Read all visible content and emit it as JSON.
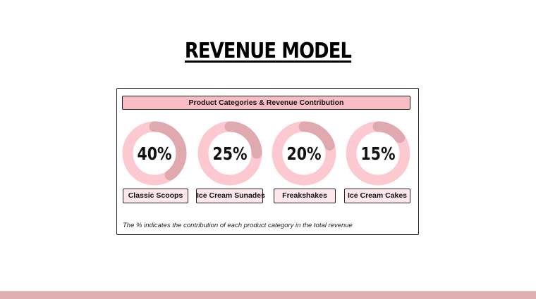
{
  "title": "REVENUE MODEL",
  "chart_data": {
    "type": "pie",
    "title": "Product Categories & Revenue Contribution",
    "categories": [
      "Classic Scoops",
      "Ice Cream Sunades",
      "Freakshakes",
      "Ice Cream Cakes"
    ],
    "values": [
      40,
      25,
      20,
      15
    ],
    "value_labels": [
      "40%",
      "25%",
      "20%",
      "15%"
    ],
    "note": "The % indicates the contribution of each product category in the total revenue"
  },
  "colors": {
    "ring_base": "#fdc9d0",
    "ring_segment": "#e0a9b0",
    "header_fill": "#f8bcc4",
    "label_fill": "#fde7ea",
    "bottom_band": "#deaeb0"
  }
}
